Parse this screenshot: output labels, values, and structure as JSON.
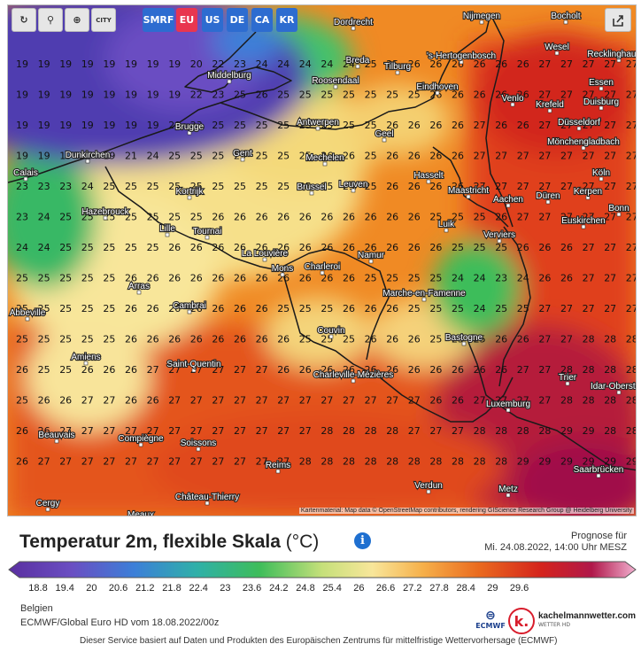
{
  "toolbar": {
    "tools": [
      {
        "name": "refresh-icon",
        "glyph": "↻"
      },
      {
        "name": "location-icon",
        "glyph": "⚲"
      },
      {
        "name": "zoom-icon",
        "glyph": "⊕"
      },
      {
        "name": "city-toggle-icon",
        "glyph": "CITY"
      }
    ],
    "regions": [
      {
        "label": "SMRF",
        "color": "#2d6cd0"
      },
      {
        "label": "EU",
        "color": "#e8364f"
      },
      {
        "label": "US",
        "color": "#2d6cd0"
      },
      {
        "label": "DE",
        "color": "#2d6cd0"
      },
      {
        "label": "CA",
        "color": "#2d6cd0"
      },
      {
        "label": "KR",
        "color": "#2d6cd0"
      }
    ],
    "share_icon": "share-icon"
  },
  "map": {
    "attribution": "Kartenmaterial: Map data © OpenStreetMap contributors, rendering GIScience Research Group @ Heidelberg University",
    "grid_rows": [
      [
        "19",
        "19",
        "19",
        "19",
        "19",
        "19",
        "19",
        "19",
        "20",
        "22",
        "23",
        "24",
        "24",
        "24",
        "24",
        "24",
        "25",
        "25",
        "26",
        "26",
        "26",
        "26",
        "26",
        "26",
        "27",
        "27",
        "27",
        "27",
        "27"
      ],
      [
        "19",
        "19",
        "19",
        "19",
        "19",
        "19",
        "19",
        "19",
        "22",
        "23",
        "25",
        "26",
        "25",
        "25",
        "25",
        "25",
        "25",
        "25",
        "25",
        "26",
        "26",
        "26",
        "26",
        "26",
        "27",
        "27",
        "27",
        "27",
        "27"
      ],
      [
        "19",
        "19",
        "19",
        "19",
        "19",
        "19",
        "19",
        "20",
        "23",
        "25",
        "25",
        "25",
        "25",
        "25",
        "25",
        "25",
        "25",
        "26",
        "26",
        "26",
        "26",
        "27",
        "26",
        "26",
        "27",
        "27",
        "27",
        "27",
        "27"
      ],
      [
        "19",
        "19",
        "19",
        "19",
        "19",
        "21",
        "24",
        "25",
        "25",
        "25",
        "25",
        "25",
        "25",
        "25",
        "26",
        "26",
        "25",
        "26",
        "26",
        "26",
        "26",
        "27",
        "27",
        "27",
        "27",
        "27",
        "27",
        "27",
        "27"
      ],
      [
        "23",
        "23",
        "23",
        "24",
        "25",
        "25",
        "25",
        "25",
        "25",
        "25",
        "25",
        "25",
        "25",
        "25",
        "25",
        "25",
        "25",
        "26",
        "26",
        "26",
        "26",
        "27",
        "27",
        "27",
        "27",
        "27",
        "27",
        "27",
        "27"
      ],
      [
        "23",
        "24",
        "25",
        "25",
        "25",
        "25",
        "25",
        "25",
        "25",
        "26",
        "26",
        "26",
        "26",
        "26",
        "26",
        "26",
        "26",
        "26",
        "26",
        "25",
        "25",
        "25",
        "26",
        "27",
        "27",
        "27",
        "27",
        "27",
        "27"
      ],
      [
        "24",
        "24",
        "25",
        "25",
        "25",
        "25",
        "25",
        "26",
        "26",
        "26",
        "26",
        "26",
        "26",
        "26",
        "26",
        "26",
        "26",
        "26",
        "26",
        "26",
        "25",
        "25",
        "25",
        "26",
        "26",
        "26",
        "27",
        "27",
        "27"
      ],
      [
        "25",
        "25",
        "25",
        "25",
        "25",
        "26",
        "26",
        "26",
        "26",
        "26",
        "26",
        "26",
        "26",
        "26",
        "26",
        "26",
        "25",
        "25",
        "25",
        "25",
        "24",
        "24",
        "23",
        "24",
        "26",
        "26",
        "27",
        "27",
        "27"
      ],
      [
        "25",
        "25",
        "25",
        "25",
        "25",
        "26",
        "26",
        "26",
        "26",
        "26",
        "26",
        "26",
        "25",
        "25",
        "25",
        "26",
        "26",
        "26",
        "25",
        "25",
        "25",
        "24",
        "25",
        "25",
        "27",
        "27",
        "27",
        "27",
        "27"
      ],
      [
        "25",
        "25",
        "25",
        "25",
        "25",
        "26",
        "26",
        "26",
        "26",
        "26",
        "26",
        "26",
        "26",
        "25",
        "25",
        "25",
        "26",
        "26",
        "26",
        "25",
        "25",
        "25",
        "26",
        "26",
        "27",
        "27",
        "28",
        "28",
        "28"
      ],
      [
        "26",
        "25",
        "25",
        "26",
        "26",
        "26",
        "27",
        "27",
        "27",
        "27",
        "27",
        "27",
        "26",
        "26",
        "26",
        "26",
        "26",
        "26",
        "26",
        "26",
        "26",
        "26",
        "26",
        "27",
        "27",
        "28",
        "28",
        "28",
        "28"
      ],
      [
        "25",
        "26",
        "26",
        "27",
        "27",
        "26",
        "26",
        "27",
        "27",
        "27",
        "27",
        "27",
        "27",
        "27",
        "27",
        "27",
        "27",
        "27",
        "27",
        "26",
        "26",
        "27",
        "27",
        "27",
        "27",
        "28",
        "28",
        "28",
        "28"
      ],
      [
        "26",
        "26",
        "27",
        "27",
        "27",
        "27",
        "27",
        "27",
        "27",
        "27",
        "27",
        "27",
        "27",
        "27",
        "28",
        "28",
        "28",
        "28",
        "27",
        "27",
        "27",
        "28",
        "28",
        "28",
        "28",
        "29",
        "29",
        "28",
        "28"
      ],
      [
        "26",
        "27",
        "27",
        "27",
        "27",
        "27",
        "27",
        "27",
        "27",
        "27",
        "27",
        "27",
        "27",
        "28",
        "28",
        "28",
        "28",
        "28",
        "28",
        "28",
        "28",
        "28",
        "28",
        "29",
        "29",
        "29",
        "29",
        "29",
        "29"
      ]
    ],
    "cities": [
      "Dordrecht",
      "Nijmegen",
      "Bocholt",
      "Wesel",
      "Recklinghausen",
      "Essen",
      "Duisburg",
      "Krefeld",
      "Düsseldorf",
      "Mönchengladbach",
      "Köln",
      "Kerpen",
      "Düren",
      "Bonn",
      "Euskirchen",
      "Breda",
      "Tilburg",
      "'s-Hertogenbosch",
      "Eindhoven",
      "Venlo",
      "Roosendaal",
      "Middelburg",
      "Antwerpen",
      "Geel",
      "Hasselt",
      "Maastricht",
      "Aachen",
      "Mechelen",
      "Brussel",
      "Leuven",
      "Brugge",
      "Gent",
      "Dunkirchen",
      "Calais",
      "Kortrijk",
      "Lille",
      "Tournai",
      "Hazebrouck",
      "La Louvière",
      "Mons",
      "Charleroi",
      "Namur",
      "Luik",
      "Verviers",
      "Marche-en-Famenne",
      "Arras",
      "Abbeville",
      "Cambrai",
      "Couvin",
      "Bastogne",
      "Amiens",
      "Saint-Quentin",
      "Charleville-Mézières",
      "Trier",
      "Idar-Oberstein",
      "Luxemburg",
      "Beauvais",
      "Compiègne",
      "Soissons",
      "Reims",
      "Verdun",
      "Metz",
      "Saarbrücken",
      "Château-Thierry",
      "Cergy",
      "Meaux"
    ]
  },
  "panel": {
    "title": "Temperatur 2m, flexible Skala",
    "unit": "(°C)",
    "info_icon": "i",
    "forecast_label": "Prognose für",
    "forecast_time": "Mi. 24.08.2022, 14:00 Uhr MESZ",
    "scale_ticks": [
      "18.8",
      "19.4",
      "20",
      "20.6",
      "21.2",
      "21.8",
      "22.4",
      "23",
      "23.6",
      "24.2",
      "24.8",
      "25.4",
      "26",
      "26.6",
      "27.2",
      "27.8",
      "28.4",
      "29",
      "29.6"
    ],
    "region": "Belgien",
    "model": "ECMWF/Global Euro HD vom 18.08.2022/00z",
    "disclaimer": "Dieser Service basiert auf Daten und Produkten des Europäischen Zentrums für mittelfristige Wettervorhersage (ECMWF)",
    "ecmwf_logo": "ECMWF",
    "brand_logo": "k.",
    "brand": "kachelmannwetter.com",
    "brand_sub": "WETTER HD"
  },
  "colors": {
    "cold": "#5a3fb3",
    "cool": "#2fb566",
    "mild": "#f6e79a",
    "warm": "#f08a24",
    "hot": "#d6231c",
    "veryhot": "#a4124a"
  }
}
